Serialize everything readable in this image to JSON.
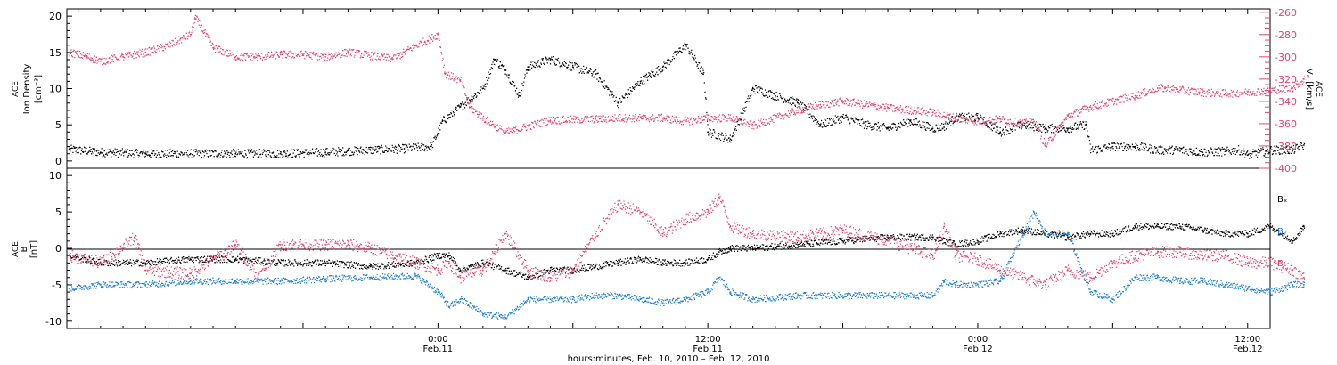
{
  "figure": {
    "xlabel": "hours:minutes, Feb. 10, 2010 – Feb. 12, 2010",
    "x_range_hours": [
      -16.5,
      37.0
    ],
    "x_ticks": [
      {
        "h": 0,
        "time": "0:00",
        "date": "Feb.11"
      },
      {
        "h": 12,
        "time": "12:00",
        "date": "Feb.11"
      },
      {
        "h": 24,
        "time": "0:00",
        "date": "Feb.12"
      },
      {
        "h": 36,
        "time": "12:00",
        "date": "Feb.12"
      }
    ],
    "colors": {
      "black": "#000000",
      "pink": "#e8436c",
      "blue": "#1f7fd0"
    }
  },
  "chart_data": [
    {
      "type": "scatter",
      "panel": "top",
      "ylabel_left": [
        "ACE",
        "Ion Density",
        "[cm⁻³]"
      ],
      "ylabel_right": [
        "ACE",
        "Vₓ [km/s]"
      ],
      "ylim_left": [
        -1,
        21
      ],
      "yticks_left": [
        0,
        5,
        10,
        15,
        20
      ],
      "ylim_right": [
        -400,
        -257
      ],
      "yticks_right": [
        -400,
        -380,
        -360,
        -340,
        -320,
        -300,
        -280,
        -260
      ],
      "series": [
        {
          "name": "",
          "axis": "left",
          "color": "#000000",
          "x": [
            -16.4,
            -15,
            -13,
            -11,
            -9,
            -7,
            -5,
            -3,
            -1.5,
            -0.3,
            0.2,
            1,
            2,
            2.5,
            3,
            3.6,
            4,
            5,
            6,
            7,
            8,
            9,
            10,
            11,
            11.8,
            12,
            13,
            14,
            15,
            16,
            17,
            18,
            19,
            20,
            21,
            22,
            22.5,
            23,
            24,
            25,
            26,
            27,
            28,
            28.8,
            29,
            30,
            31,
            32,
            33,
            34,
            35,
            35.6,
            36,
            37,
            38,
            38.5
          ],
          "y": [
            1.6,
            1.2,
            1.0,
            1.0,
            1.0,
            1.0,
            1.2,
            1.5,
            1.7,
            2.0,
            5.5,
            7.5,
            10,
            14,
            12.5,
            9,
            13,
            14,
            13,
            12,
            8,
            11,
            13,
            16,
            12,
            4,
            3,
            10,
            9,
            8,
            5,
            6,
            5,
            4.5,
            5.5,
            4.5,
            4.8,
            6,
            6,
            4,
            5,
            4.5,
            4.5,
            5,
            1.5,
            2,
            2,
            1.5,
            1.5,
            1.2,
            1.3,
            1.5,
            0.8,
            1.5,
            1.5,
            2.2
          ]
        },
        {
          "name": "",
          "axis": "right",
          "color": "#e8436c",
          "x": [
            -16.4,
            -15.6,
            -15,
            -14,
            -13,
            -12,
            -11,
            -10.8,
            -10,
            -9,
            -8,
            -7,
            -6,
            -5,
            -4,
            -2,
            -1,
            -0.2,
            0,
            0.3,
            1,
            1.4,
            2,
            3,
            5,
            7,
            8,
            10,
            11,
            12,
            13,
            14,
            15,
            16,
            17,
            18,
            20,
            22,
            23,
            24,
            25,
            26,
            26.5,
            27,
            28,
            29,
            30,
            31,
            32,
            33,
            34,
            35,
            36,
            37,
            38,
            38.5
          ],
          "y": [
            -296,
            -300,
            -304,
            -300,
            -296,
            -290,
            -280,
            -265,
            -292,
            -300,
            -300,
            -298,
            -298,
            -300,
            -296,
            -302,
            -290,
            -282,
            -280,
            -315,
            -322,
            -345,
            -355,
            -368,
            -357,
            -356,
            -355,
            -355,
            -358,
            -355,
            -355,
            -362,
            -355,
            -348,
            -343,
            -340,
            -346,
            -350,
            -355,
            -358,
            -356,
            -360,
            -358,
            -380,
            -353,
            -345,
            -340,
            -335,
            -328,
            -330,
            -332,
            -333,
            -332,
            -330,
            -328,
            -320
          ]
        }
      ]
    },
    {
      "type": "scatter",
      "panel": "bottom",
      "ylabel_left": [
        "ACE",
        "B",
        "[nT]"
      ],
      "ylim": [
        -11,
        11
      ],
      "yticks": [
        -10,
        -5,
        0,
        5,
        10
      ],
      "legend": [
        "Bₓ",
        "Bᵧ",
        "Bᵣ"
      ],
      "series": [
        {
          "name": "Bₓ",
          "color": "#000000",
          "x": [
            -16.4,
            -15,
            -13,
            -11,
            -9,
            -7,
            -5,
            -3,
            -1,
            0,
            0.5,
            1,
            2,
            3,
            4,
            5,
            6,
            7,
            8,
            9,
            10,
            11,
            12,
            12.5,
            13,
            14,
            16,
            18,
            20,
            22,
            23,
            24,
            25,
            26,
            27,
            28,
            29,
            30,
            31,
            32,
            33,
            34,
            35,
            36,
            37,
            38,
            38.5
          ],
          "y": [
            -1,
            -2,
            -2,
            -1.5,
            -1.5,
            -2,
            -2,
            -2.5,
            -2,
            -1,
            -1,
            -3,
            -2,
            -3,
            -4,
            -3,
            -3,
            -2.5,
            -2,
            -1.5,
            -2,
            -2,
            -1.5,
            -0.5,
            0,
            0,
            0.5,
            1,
            1.5,
            1.5,
            0.5,
            1,
            2,
            2.5,
            2,
            1.5,
            2,
            2,
            3,
            3,
            3,
            2.5,
            2,
            2,
            3,
            1,
            3
          ]
        },
        {
          "name": "Bᵧ",
          "color": "#1f7fd0",
          "x": [
            -16.4,
            -15,
            -13,
            -11,
            -9,
            -7,
            -5,
            -3,
            -1,
            0,
            0.5,
            1,
            2,
            3,
            4,
            5,
            6,
            7,
            8,
            9,
            10,
            11,
            12,
            12.5,
            13,
            14,
            16,
            18,
            20,
            22,
            22.5,
            23,
            24,
            25,
            26,
            26.5,
            27,
            28,
            29,
            30,
            31,
            32,
            33,
            34,
            35,
            36,
            37,
            38,
            38.5
          ],
          "y": [
            -5.5,
            -5,
            -5,
            -4.5,
            -4.5,
            -4.5,
            -4.2,
            -4,
            -3.8,
            -6,
            -8,
            -7,
            -9,
            -9.5,
            -7,
            -7,
            -7,
            -6.5,
            -6.5,
            -7,
            -7.5,
            -7,
            -6,
            -4,
            -6,
            -7,
            -6.5,
            -6.5,
            -6.5,
            -6.5,
            -4.5,
            -5,
            -5,
            -4.5,
            2,
            5,
            2,
            2,
            -6,
            -7,
            -4,
            -4,
            -4.5,
            -4.5,
            -5,
            -5.5,
            -6,
            -5,
            -5
          ]
        },
        {
          "name": "Bᵣ",
          "color": "#e8436c",
          "x": [
            -16.4,
            -15,
            -13.5,
            -13,
            -11,
            -9,
            -8,
            -7,
            -6,
            -5,
            -4,
            -3,
            -2,
            -1,
            0,
            0.5,
            1,
            2,
            3,
            4,
            5,
            6,
            7,
            8,
            9,
            10,
            11,
            12,
            12.5,
            13,
            14,
            16,
            18,
            20,
            22,
            22.5,
            23,
            24,
            25,
            26,
            27,
            28,
            29,
            30,
            31,
            32,
            33,
            34,
            35,
            36,
            37,
            38,
            38.5
          ],
          "y": [
            -1,
            -2,
            1.5,
            -3,
            -3.5,
            0.5,
            -4,
            0.5,
            0.5,
            0.5,
            0.5,
            0,
            -1,
            -2,
            -3,
            -2,
            -4,
            -3,
            2,
            -3,
            -4,
            -3,
            2,
            6,
            5,
            2,
            4,
            5,
            7,
            3,
            2,
            1.5,
            2.5,
            1,
            -1,
            3,
            -1,
            -1.5,
            -3,
            -4,
            -5,
            -3,
            -4,
            -2,
            -1,
            -0.5,
            -0.5,
            -1,
            -1,
            -2,
            -2,
            -3,
            -4
          ]
        }
      ]
    }
  ]
}
